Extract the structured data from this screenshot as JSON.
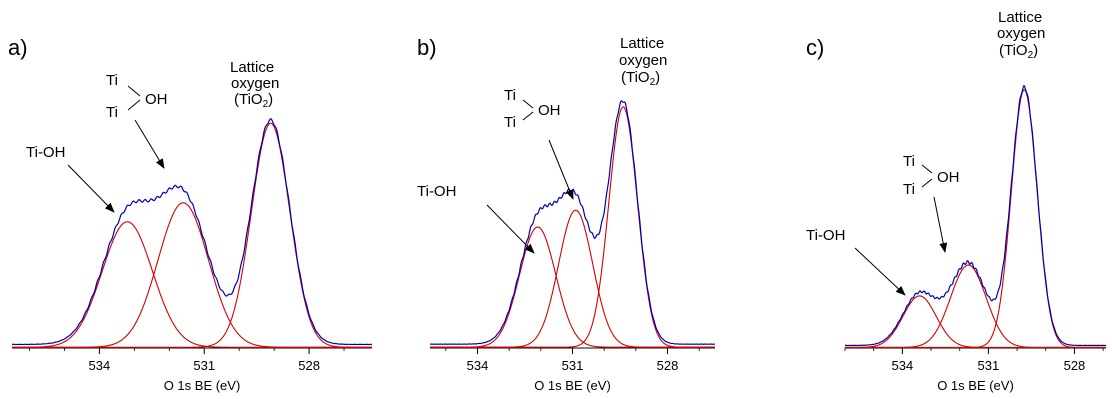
{
  "chart_data": [
    {
      "type": "line",
      "panel_label": "a)",
      "xlabel": "O 1s BE (eV)",
      "x_ticks": [
        534,
        531,
        528
      ],
      "xlim": [
        536.5,
        526.2
      ],
      "ylim": [
        0,
        1.04
      ],
      "baseline": 0.016,
      "series": [
        {
          "center": 533.2,
          "amplitude": 0.56,
          "width": 0.72
        },
        {
          "center": 531.6,
          "amplitude": 0.645,
          "width": 0.72
        },
        {
          "center": 529.1,
          "amplitude": 1.0,
          "width": 0.55
        }
      ],
      "annotations": {
        "ti_oh": "Ti-OH",
        "bridging_top": "Ti",
        "bridging_bottom": "Ti",
        "bridging_oh": "OH",
        "lattice_line1": "Lattice",
        "lattice_line2": "oxygen",
        "lattice_open": "(TiO",
        "lattice_sub": "2",
        "lattice_close": ")"
      }
    },
    {
      "type": "line",
      "panel_label": "b)",
      "xlabel": "O 1s BE (eV)",
      "x_ticks": [
        534,
        531,
        528
      ],
      "xlim": [
        535.5,
        526.5
      ],
      "ylim": [
        0,
        1.04
      ],
      "baseline": 0.016,
      "series": [
        {
          "center": 532.1,
          "amplitude": 0.5,
          "width": 0.57
        },
        {
          "center": 530.9,
          "amplitude": 0.57,
          "width": 0.54
        },
        {
          "center": 529.4,
          "amplitude": 1.0,
          "width": 0.45
        }
      ],
      "annotations": {
        "ti_oh": "Ti-OH",
        "bridging_top": "Ti",
        "bridging_bottom": "Ti",
        "bridging_oh": "OH",
        "lattice_line1": "Lattice",
        "lattice_line2": "oxygen",
        "lattice_open": "(TiO",
        "lattice_sub": "2",
        "lattice_close": ")"
      }
    },
    {
      "type": "line",
      "panel_label": "c)",
      "xlabel": "O 1s BE (eV)",
      "x_ticks": [
        534,
        531,
        528
      ],
      "xlim": [
        536.0,
        526.9
      ],
      "ylim": [
        0,
        1.04
      ],
      "baseline": 0.01,
      "series": [
        {
          "center": 533.4,
          "amplitude": 0.2,
          "width": 0.58
        },
        {
          "center": 531.7,
          "amplitude": 0.32,
          "width": 0.62
        },
        {
          "center": 529.75,
          "amplitude": 1.0,
          "width": 0.45
        }
      ],
      "annotations": {
        "ti_oh": "Ti-OH",
        "bridging_top": "Ti",
        "bridging_bottom": "Ti",
        "bridging_oh": "OH",
        "lattice_line1": "Lattice",
        "lattice_line2": "oxygen",
        "lattice_open": "(TiO",
        "lattice_sub": "2",
        "lattice_close": ")"
      }
    }
  ]
}
